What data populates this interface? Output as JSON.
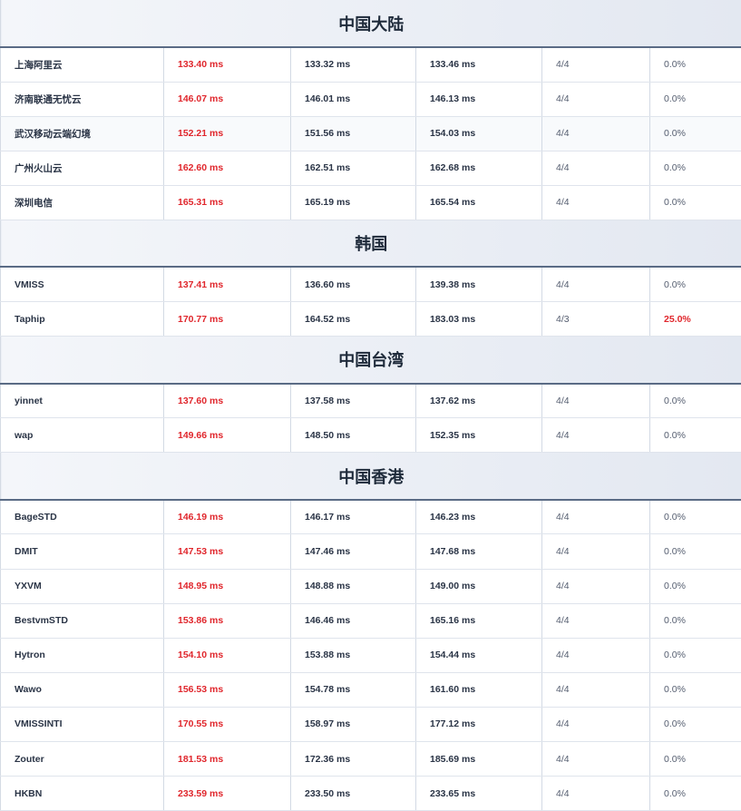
{
  "colors": {
    "accent_red": "#e0262c",
    "header_text": "#1e2a3a"
  },
  "sections": [
    {
      "title": "中国大陆",
      "rows": [
        {
          "name": "上海阿里云",
          "best": "133.40 ms",
          "avg": "133.32 ms",
          "worst": "133.46 ms",
          "recv": "4/4",
          "loss": "0.0%"
        },
        {
          "name": "济南联通无忧云",
          "best": "146.07 ms",
          "avg": "146.01 ms",
          "worst": "146.13 ms",
          "recv": "4/4",
          "loss": "0.0%"
        },
        {
          "name": "武汉移动云端幻境",
          "best": "152.21 ms",
          "avg": "151.56 ms",
          "worst": "154.03 ms",
          "recv": "4/4",
          "loss": "0.0%"
        },
        {
          "name": "广州火山云",
          "best": "162.60 ms",
          "avg": "162.51 ms",
          "worst": "162.68 ms",
          "recv": "4/4",
          "loss": "0.0%"
        },
        {
          "name": "深圳电信",
          "best": "165.31 ms",
          "avg": "165.19 ms",
          "worst": "165.54 ms",
          "recv": "4/4",
          "loss": "0.0%"
        }
      ]
    },
    {
      "title": "韩国",
      "rows": [
        {
          "name": "VMISS",
          "best": "137.41 ms",
          "avg": "136.60 ms",
          "worst": "139.38 ms",
          "recv": "4/4",
          "loss": "0.0%"
        },
        {
          "name": "Taphip",
          "best": "170.77 ms",
          "avg": "164.52 ms",
          "worst": "183.03 ms",
          "recv": "4/3",
          "loss": "25.0%"
        }
      ]
    },
    {
      "title": "中国台湾",
      "rows": [
        {
          "name": "yinnet",
          "best": "137.60 ms",
          "avg": "137.58 ms",
          "worst": "137.62 ms",
          "recv": "4/4",
          "loss": "0.0%"
        },
        {
          "name": "wap",
          "best": "149.66 ms",
          "avg": "148.50 ms",
          "worst": "152.35 ms",
          "recv": "4/4",
          "loss": "0.0%"
        }
      ]
    },
    {
      "title": "中国香港",
      "rows": [
        {
          "name": "BageSTD",
          "best": "146.19 ms",
          "avg": "146.17 ms",
          "worst": "146.23 ms",
          "recv": "4/4",
          "loss": "0.0%"
        },
        {
          "name": "DMIT",
          "best": "147.53 ms",
          "avg": "147.46 ms",
          "worst": "147.68 ms",
          "recv": "4/4",
          "loss": "0.0%"
        },
        {
          "name": "YXVM",
          "best": "148.95 ms",
          "avg": "148.88 ms",
          "worst": "149.00 ms",
          "recv": "4/4",
          "loss": "0.0%"
        },
        {
          "name": "BestvmSTD",
          "best": "153.86 ms",
          "avg": "146.46 ms",
          "worst": "165.16 ms",
          "recv": "4/4",
          "loss": "0.0%"
        },
        {
          "name": "Hytron",
          "best": "154.10 ms",
          "avg": "153.88 ms",
          "worst": "154.44 ms",
          "recv": "4/4",
          "loss": "0.0%"
        },
        {
          "name": "Wawo",
          "best": "156.53 ms",
          "avg": "154.78 ms",
          "worst": "161.60 ms",
          "recv": "4/4",
          "loss": "0.0%"
        },
        {
          "name": "VMISSINTI",
          "best": "170.55 ms",
          "avg": "158.97 ms",
          "worst": "177.12 ms",
          "recv": "4/4",
          "loss": "0.0%"
        },
        {
          "name": "Zouter",
          "best": "181.53 ms",
          "avg": "172.36 ms",
          "worst": "185.69 ms",
          "recv": "4/4",
          "loss": "0.0%"
        },
        {
          "name": "HKBN",
          "best": "233.59 ms",
          "avg": "233.50 ms",
          "worst": "233.65 ms",
          "recv": "4/4",
          "loss": "0.0%"
        }
      ]
    }
  ]
}
